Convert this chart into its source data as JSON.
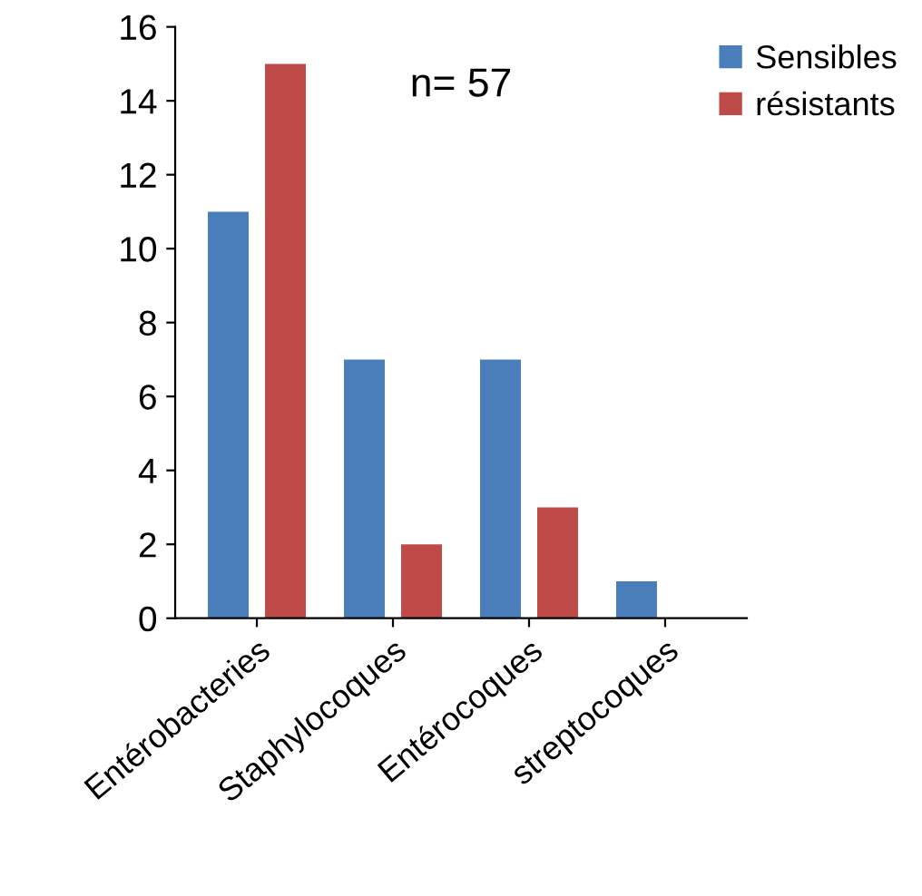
{
  "chart_data": {
    "type": "bar",
    "categories": [
      "Entérobacteries",
      "Staphylocoques",
      "Entérocoques",
      "streptocoques"
    ],
    "series": [
      {
        "name": "Sensibles",
        "color": "#4a7ebb",
        "values": [
          11,
          7,
          7,
          1
        ]
      },
      {
        "name": "résistants",
        "color": "#be4b48",
        "values": [
          15,
          2,
          3,
          0
        ]
      }
    ],
    "ylim": [
      0,
      16
    ],
    "yticks": [
      0,
      2,
      4,
      6,
      8,
      10,
      12,
      14,
      16
    ],
    "annotations": [
      "n= 57"
    ],
    "legend": "top right",
    "grid": false
  }
}
